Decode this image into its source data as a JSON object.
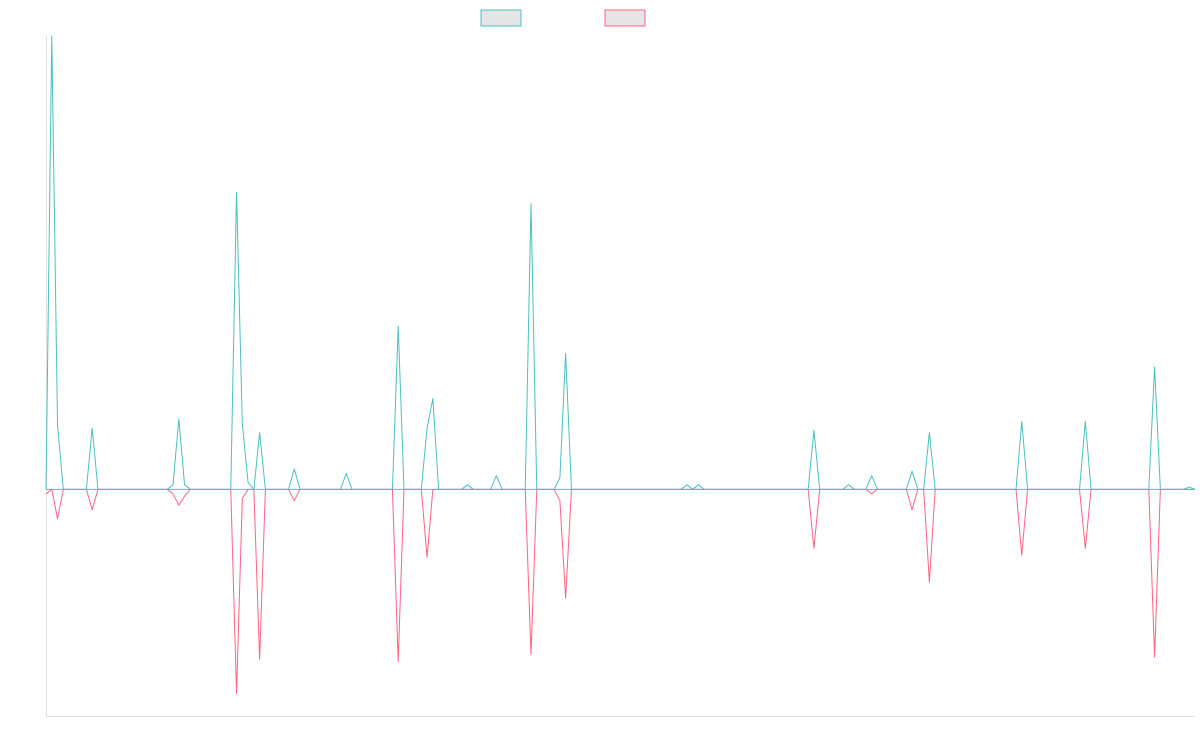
{
  "chart_data": {
    "type": "line",
    "title": "",
    "xlabel": "",
    "ylabel": "",
    "grid": false,
    "legend_position": "top-center",
    "colors": {
      "series_a": "#4bc0c0",
      "series_b": "#ff6384",
      "legend_fill": "#e5e5e5",
      "axis": "#e0e0e0"
    },
    "x_count": 200,
    "ylim": [
      -1.0,
      2.0
    ],
    "series": [
      {
        "values": [
          0.0,
          2.0,
          0.28,
          0.0,
          0.0,
          0.0,
          0.0,
          0.0,
          0.27,
          0.0,
          0.0,
          0.0,
          0.0,
          0.0,
          0.0,
          0.0,
          0.0,
          0.0,
          0.0,
          0.0,
          0.0,
          0.0,
          0.02,
          0.31,
          0.02,
          0.0,
          0.0,
          0.0,
          0.0,
          0.0,
          0.0,
          0.0,
          0.0,
          1.31,
          0.29,
          0.03,
          0.0,
          0.25,
          0.0,
          0.0,
          0.0,
          0.0,
          0.0,
          0.09,
          0.0,
          0.0,
          0.0,
          0.0,
          0.0,
          0.0,
          0.0,
          0.0,
          0.07,
          0.0,
          0.0,
          0.0,
          0.0,
          0.0,
          0.0,
          0.0,
          0.0,
          0.72,
          0.0,
          0.0,
          0.0,
          0.0,
          0.27,
          0.4,
          0.0,
          0.0,
          0.0,
          0.0,
          0.0,
          0.02,
          0.0,
          0.0,
          0.0,
          0.0,
          0.06,
          0.0,
          0.0,
          0.0,
          0.0,
          0.0,
          1.26,
          0.0,
          0.0,
          0.0,
          0.0,
          0.05,
          0.6,
          0.0,
          0.0,
          0.0,
          0.0,
          0.0,
          0.0,
          0.0,
          0.0,
          0.0,
          0.0,
          0.0,
          0.0,
          0.0,
          0.0,
          0.0,
          0.0,
          0.0,
          0.0,
          0.0,
          0.0,
          0.02,
          0.0,
          0.02,
          0.0,
          0.0,
          0.0,
          0.0,
          0.0,
          0.0,
          0.0,
          0.0,
          0.0,
          0.0,
          0.0,
          0.0,
          0.0,
          0.0,
          0.0,
          0.0,
          0.0,
          0.0,
          0.0,
          0.26,
          0.0,
          0.0,
          0.0,
          0.0,
          0.0,
          0.02,
          0.0,
          0.0,
          0.0,
          0.06,
          0.0,
          0.0,
          0.0,
          0.0,
          0.0,
          0.0,
          0.08,
          0.0,
          0.0,
          0.25,
          0.0,
          0.0,
          0.0,
          0.0,
          0.0,
          0.0,
          0.0,
          0.0,
          0.0,
          0.0,
          0.0,
          0.0,
          0.0,
          0.0,
          0.0,
          0.3,
          0.0,
          0.0,
          0.0,
          0.0,
          0.0,
          0.0,
          0.0,
          0.0,
          0.0,
          0.0,
          0.3,
          0.0,
          0.0,
          0.0,
          0.0,
          0.0,
          0.0,
          0.0,
          0.0,
          0.0,
          0.0,
          0.0,
          0.54,
          0.0,
          0.0,
          0.0,
          0.0,
          0.0,
          0.01,
          0.0
        ]
      },
      {
        "values": [
          -0.02,
          0.0,
          -0.13,
          0.0,
          0.0,
          0.0,
          0.0,
          0.0,
          -0.09,
          0.0,
          0.0,
          0.0,
          0.0,
          0.0,
          0.0,
          0.0,
          0.0,
          0.0,
          0.0,
          0.0,
          0.0,
          0.0,
          -0.02,
          -0.07,
          -0.03,
          0.0,
          0.0,
          0.0,
          0.0,
          0.0,
          0.0,
          0.0,
          0.0,
          -0.9,
          -0.04,
          0.0,
          0.0,
          -0.75,
          0.0,
          0.0,
          0.0,
          0.0,
          0.0,
          -0.05,
          0.0,
          0.0,
          0.0,
          0.0,
          0.0,
          0.0,
          0.0,
          0.0,
          0.0,
          0.0,
          0.0,
          0.0,
          0.0,
          0.0,
          0.0,
          0.0,
          0.0,
          -0.76,
          0.0,
          0.0,
          0.0,
          0.0,
          -0.3,
          0.0,
          0.0,
          0.0,
          0.0,
          0.0,
          0.0,
          0.0,
          0.0,
          0.0,
          0.0,
          0.0,
          0.0,
          0.0,
          0.0,
          0.0,
          0.0,
          0.0,
          -0.73,
          0.0,
          0.0,
          0.0,
          0.0,
          -0.05,
          -0.48,
          0.0,
          0.0,
          0.0,
          0.0,
          0.0,
          0.0,
          0.0,
          0.0,
          0.0,
          0.0,
          0.0,
          0.0,
          0.0,
          0.0,
          0.0,
          0.0,
          0.0,
          0.0,
          0.0,
          0.0,
          0.0,
          0.0,
          0.0,
          0.0,
          0.0,
          0.0,
          0.0,
          0.0,
          0.0,
          0.0,
          0.0,
          0.0,
          0.0,
          0.0,
          0.0,
          0.0,
          0.0,
          0.0,
          0.0,
          0.0,
          0.0,
          0.0,
          -0.26,
          0.0,
          0.0,
          0.0,
          0.0,
          0.0,
          0.0,
          0.0,
          0.0,
          0.0,
          -0.02,
          0.0,
          0.0,
          0.0,
          0.0,
          0.0,
          0.0,
          -0.09,
          0.0,
          0.0,
          -0.41,
          0.0,
          0.0,
          0.0,
          0.0,
          0.0,
          0.0,
          0.0,
          0.0,
          0.0,
          0.0,
          0.0,
          0.0,
          0.0,
          0.0,
          0.0,
          -0.29,
          0.0,
          0.0,
          0.0,
          0.0,
          0.0,
          0.0,
          0.0,
          0.0,
          0.0,
          0.0,
          -0.26,
          0.0,
          0.0,
          0.0,
          0.0,
          0.0,
          0.0,
          0.0,
          0.0,
          0.0,
          0.0,
          0.0,
          -0.74,
          0.0,
          0.0,
          0.0,
          0.0,
          0.0,
          0.0,
          0.0
        ]
      }
    ]
  }
}
